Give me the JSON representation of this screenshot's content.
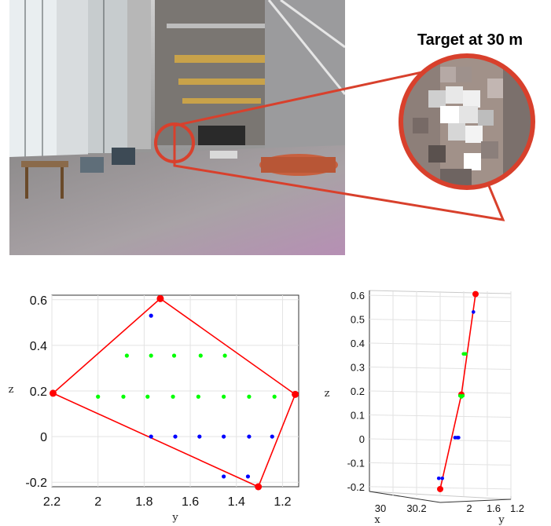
{
  "zoom_callout": {
    "title": "Target at 30 m",
    "circle_color": "#d8402c"
  },
  "chart_data": [
    {
      "type": "scatter",
      "xlabel": "y",
      "ylabel": "z",
      "x_reversed": true,
      "xlim": [
        2.2,
        1.13
      ],
      "ylim": [
        -0.22,
        0.62
      ],
      "xticks": [
        "2.2",
        "2",
        "1.8",
        "1.6",
        "1.4",
        "1.2"
      ],
      "xtick_values": [
        2.2,
        2.0,
        1.8,
        1.6,
        1.4,
        1.2
      ],
      "yticks": [
        "0.6",
        "0.4",
        "0.2",
        "0",
        "-0.2"
      ],
      "ytick_values": [
        0.6,
        0.4,
        0.2,
        0.0,
        -0.2
      ],
      "grid": true,
      "series": [
        {
          "color": "#ff0000",
          "kind": "polygon",
          "points": [
            [
              1.73,
              0.605
            ],
            [
              1.145,
              0.185
            ],
            [
              1.305,
              -0.22
            ],
            [
              2.195,
              0.19
            ]
          ]
        },
        {
          "color": "#0000ff",
          "kind": "points",
          "points": [
            [
              1.77,
              0.53
            ],
            [
              1.77,
              0.0
            ],
            [
              1.665,
              0.0
            ],
            [
              1.56,
              0.0
            ],
            [
              1.455,
              0.0
            ],
            [
              1.345,
              0.0
            ],
            [
              1.245,
              0.0
            ],
            [
              1.455,
              -0.175
            ],
            [
              1.35,
              -0.175
            ]
          ]
        },
        {
          "color": "#00ff00",
          "kind": "points",
          "points": [
            [
              1.875,
              0.355
            ],
            [
              1.77,
              0.355
            ],
            [
              1.67,
              0.355
            ],
            [
              1.555,
              0.355
            ],
            [
              1.45,
              0.355
            ],
            [
              2.0,
              0.175
            ],
            [
              1.89,
              0.175
            ],
            [
              1.785,
              0.175
            ],
            [
              1.675,
              0.175
            ],
            [
              1.565,
              0.175
            ],
            [
              1.455,
              0.175
            ],
            [
              1.345,
              0.175
            ],
            [
              1.235,
              0.175
            ]
          ]
        }
      ]
    },
    {
      "type": "scatter",
      "projection": "3d",
      "xlabel": "x",
      "ylabel": "z",
      "y_axis_label": "y",
      "zlim": [
        -0.22,
        0.62
      ],
      "zticks": [
        "0.6",
        "0.5",
        "0.4",
        "0.3",
        "0.2",
        "0.1",
        "0",
        "-0.1",
        "-0.2"
      ],
      "ztick_values": [
        0.6,
        0.5,
        0.4,
        0.3,
        0.2,
        0.1,
        0.0,
        -0.1,
        -0.2
      ],
      "bottom_ticks": [
        "30",
        "30.2",
        "2",
        "1.6",
        "1.2"
      ],
      "grid": true,
      "series": [
        {
          "color": "#ff0000",
          "kind": "line",
          "points": [
            [
              0.5,
              -0.21
            ],
            [
              0.65,
              0.185
            ],
            [
              0.75,
              0.605
            ]
          ]
        },
        {
          "color": "#0000ff",
          "kind": "points",
          "points": [
            [
              0.735,
              0.53
            ],
            [
              0.605,
              0.005
            ],
            [
              0.62,
              0.005
            ],
            [
              0.63,
              0.005
            ],
            [
              0.49,
              -0.165
            ],
            [
              0.515,
              -0.165
            ]
          ]
        },
        {
          "color": "#00ff00",
          "kind": "points",
          "points": [
            [
              0.665,
              0.355
            ],
            [
              0.675,
              0.355
            ],
            [
              0.68,
              0.355
            ],
            [
              0.64,
              0.18
            ],
            [
              0.65,
              0.175
            ],
            [
              0.66,
              0.18
            ]
          ]
        }
      ]
    }
  ]
}
